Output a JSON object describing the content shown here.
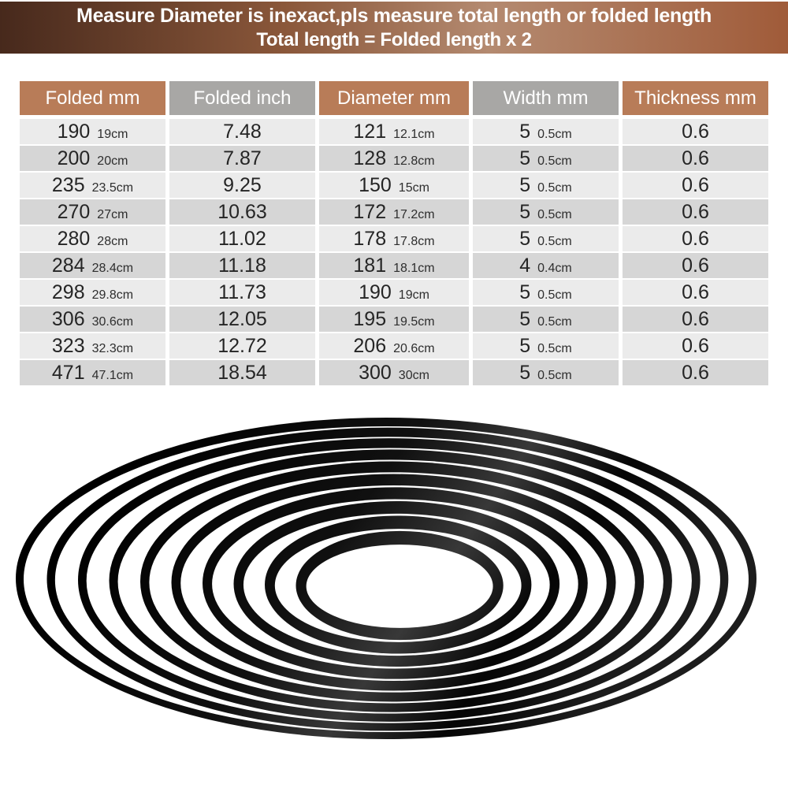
{
  "banner": {
    "line1": "Measure Diameter is inexact,pls measure total length or folded length",
    "line2": "Total length = Folded length x 2",
    "text_color": "#ffffff",
    "gradient": [
      "#47291c",
      "#8a573a",
      "#b48a70",
      "#a05b39"
    ]
  },
  "table": {
    "columns": [
      {
        "label": "Folded mm",
        "theme": "brown",
        "num_key": "folded_mm",
        "unit_key": "folded_cm"
      },
      {
        "label": "Folded inch",
        "theme": "gray",
        "num_key": "folded_inch"
      },
      {
        "label": "Diameter mm",
        "theme": "brown",
        "num_key": "diameter_mm",
        "unit_key": "diameter_cm"
      },
      {
        "label": "Width mm",
        "theme": "gray",
        "num_key": "width_mm",
        "unit_key": "width_cm"
      },
      {
        "label": "Thickness mm",
        "theme": "brown",
        "num_key": "thickness_mm"
      }
    ],
    "rows": [
      {
        "folded_mm": "190",
        "folded_cm": "19cm",
        "folded_inch": "7.48",
        "diameter_mm": "121",
        "diameter_cm": "12.1cm",
        "width_mm": "5",
        "width_cm": "0.5cm",
        "thickness_mm": "0.6"
      },
      {
        "folded_mm": "200",
        "folded_cm": "20cm",
        "folded_inch": "7.87",
        "diameter_mm": "128",
        "diameter_cm": "12.8cm",
        "width_mm": "5",
        "width_cm": "0.5cm",
        "thickness_mm": "0.6"
      },
      {
        "folded_mm": "235",
        "folded_cm": "23.5cm",
        "folded_inch": "9.25",
        "diameter_mm": "150",
        "diameter_cm": "15cm",
        "width_mm": "5",
        "width_cm": "0.5cm",
        "thickness_mm": "0.6"
      },
      {
        "folded_mm": "270",
        "folded_cm": "27cm",
        "folded_inch": "10.63",
        "diameter_mm": "172",
        "diameter_cm": "17.2cm",
        "width_mm": "5",
        "width_cm": "0.5cm",
        "thickness_mm": "0.6"
      },
      {
        "folded_mm": "280",
        "folded_cm": "28cm",
        "folded_inch": "11.02",
        "diameter_mm": "178",
        "diameter_cm": "17.8cm",
        "width_mm": "5",
        "width_cm": "0.5cm",
        "thickness_mm": "0.6"
      },
      {
        "folded_mm": "284",
        "folded_cm": "28.4cm",
        "folded_inch": "11.18",
        "diameter_mm": "181",
        "diameter_cm": "18.1cm",
        "width_mm": "4",
        "width_cm": "0.4cm",
        "thickness_mm": "0.6"
      },
      {
        "folded_mm": "298",
        "folded_cm": "29.8cm",
        "folded_inch": "11.73",
        "diameter_mm": "190",
        "diameter_cm": "19cm",
        "width_mm": "5",
        "width_cm": "0.5cm",
        "thickness_mm": "0.6"
      },
      {
        "folded_mm": "306",
        "folded_cm": "30.6cm",
        "folded_inch": "12.05",
        "diameter_mm": "195",
        "diameter_cm": "19.5cm",
        "width_mm": "5",
        "width_cm": "0.5cm",
        "thickness_mm": "0.6"
      },
      {
        "folded_mm": "323",
        "folded_cm": "32.3cm",
        "folded_inch": "12.72",
        "diameter_mm": "206",
        "diameter_cm": "20.6cm",
        "width_mm": "5",
        "width_cm": "0.5cm",
        "thickness_mm": "0.6"
      },
      {
        "folded_mm": "471",
        "folded_cm": "47.1cm",
        "folded_inch": "18.54",
        "diameter_mm": "300",
        "diameter_cm": "30cm",
        "width_mm": "5",
        "width_cm": "0.5cm",
        "thickness_mm": "0.6"
      }
    ],
    "colors": {
      "header_brown": "#b87c58",
      "header_gray": "#a8a7a5",
      "row_light": "#ebebeb",
      "row_dark": "#d6d6d6",
      "text": "#252525"
    }
  },
  "illustration": {
    "name": "stacked-rubber-belt-rings",
    "ring_count": 10,
    "ring_color": "#000000",
    "background": "#ffffff"
  }
}
